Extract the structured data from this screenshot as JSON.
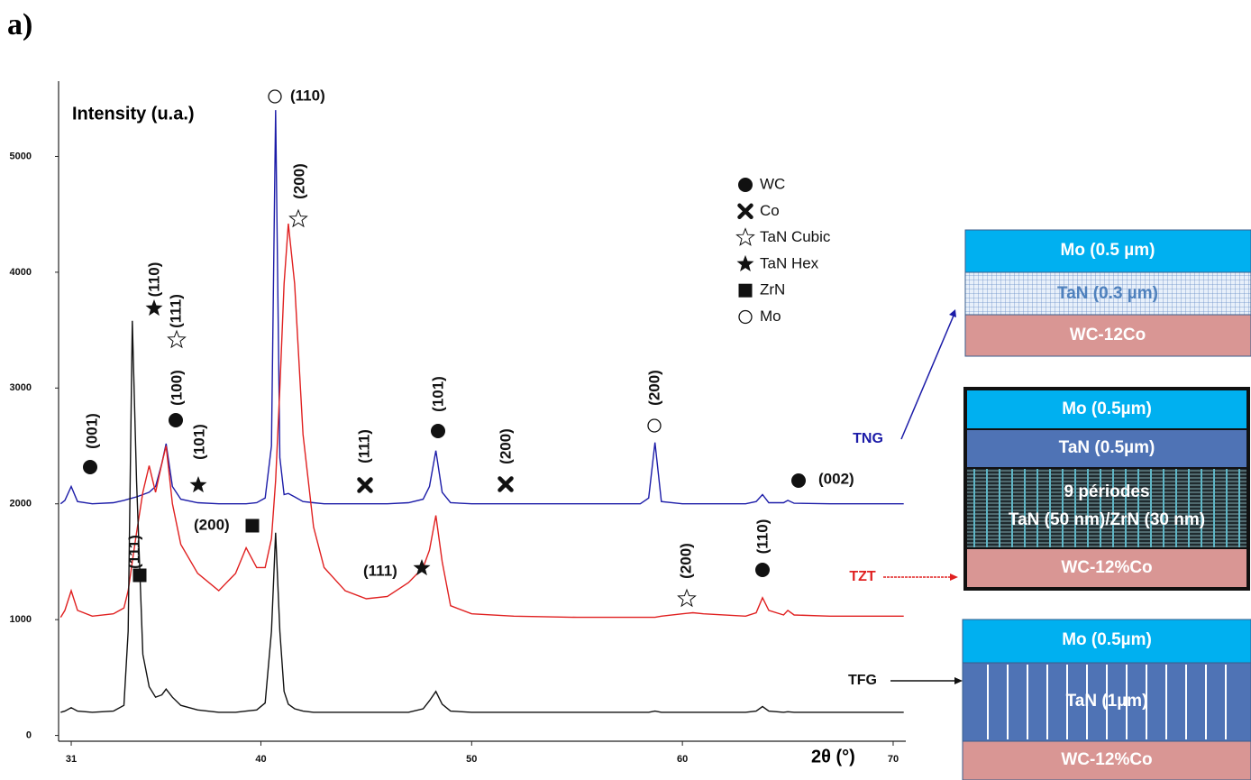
{
  "panel_label": "a)",
  "chart_data": {
    "type": "line",
    "y_label": "Intensity (u.a.)",
    "x_label": "2θ (°)",
    "xlim": [
      30.4,
      70.6
    ],
    "xticks": [
      31,
      40,
      50,
      60,
      70
    ],
    "ylim": [
      -50,
      5650
    ],
    "yticks": [
      0,
      1000,
      2000,
      3000,
      4000,
      5000
    ],
    "grid": false,
    "x": [
      30.5,
      30.7,
      31.0,
      31.3,
      32,
      33,
      33.5,
      33.7,
      33.9,
      34.1,
      34.4,
      34.7,
      35.0,
      35.3,
      35.5,
      35.8,
      36.2,
      37,
      38,
      38.8,
      39.3,
      39.8,
      40.2,
      40.5,
      40.7,
      40.9,
      41.1,
      41.3,
      41.6,
      42,
      42.5,
      43,
      44,
      45,
      46,
      47,
      47.7,
      48.0,
      48.3,
      48.6,
      49,
      50,
      52,
      55,
      58,
      58.4,
      58.7,
      59,
      60,
      60.5,
      61,
      63,
      63.5,
      63.8,
      64.1,
      64.8,
      65.0,
      65.3,
      67,
      70.5
    ],
    "series": [
      {
        "name": "TNG",
        "color": "#1c1ca8",
        "values": [
          2000,
          2030,
          2150,
          2020,
          2000,
          2010,
          2030,
          2040,
          2050,
          2060,
          2080,
          2100,
          2150,
          2350,
          2520,
          2150,
          2040,
          2010,
          2000,
          2000,
          2000,
          2010,
          2050,
          2500,
          5400,
          2400,
          2080,
          2090,
          2060,
          2020,
          2010,
          2000,
          2000,
          2000,
          2000,
          2010,
          2040,
          2150,
          2460,
          2100,
          2010,
          2000,
          2000,
          2000,
          2000,
          2050,
          2530,
          2020,
          2000,
          2000,
          2000,
          2000,
          2020,
          2080,
          2010,
          2010,
          2030,
          2005,
          2000,
          2000
        ]
      },
      {
        "name": "TZT",
        "color": "#e02020",
        "values": [
          1020,
          1080,
          1250,
          1080,
          1030,
          1050,
          1100,
          1250,
          1500,
          1750,
          2100,
          2330,
          2100,
          2350,
          2500,
          2000,
          1650,
          1400,
          1250,
          1400,
          1620,
          1450,
          1450,
          1700,
          2200,
          3000,
          3900,
          4420,
          3900,
          2600,
          1800,
          1450,
          1250,
          1180,
          1200,
          1320,
          1450,
          1600,
          1900,
          1500,
          1120,
          1050,
          1030,
          1020,
          1020,
          1020,
          1020,
          1030,
          1050,
          1060,
          1050,
          1030,
          1060,
          1190,
          1080,
          1040,
          1080,
          1040,
          1030,
          1030
        ]
      },
      {
        "name": "TFG",
        "color": "#111111",
        "values": [
          200,
          210,
          240,
          210,
          200,
          210,
          260,
          900,
          3580,
          2200,
          700,
          420,
          330,
          350,
          400,
          330,
          260,
          220,
          200,
          200,
          210,
          220,
          280,
          900,
          1750,
          900,
          380,
          270,
          230,
          210,
          200,
          200,
          200,
          200,
          200,
          200,
          230,
          300,
          380,
          270,
          210,
          200,
          200,
          200,
          200,
          200,
          210,
          200,
          200,
          200,
          200,
          200,
          210,
          250,
          210,
          200,
          205,
          200,
          200,
          200
        ]
      }
    ],
    "legend": [
      {
        "name": "WC",
        "marker": "circle"
      },
      {
        "name": "Co",
        "marker": "cross"
      },
      {
        "name": "TaN Cubic",
        "marker": "star-open"
      },
      {
        "name": "TaN Hex",
        "marker": "star"
      },
      {
        "name": "ZrN",
        "marker": "square"
      },
      {
        "name": "Mo",
        "marker": "circle-open"
      }
    ],
    "annotations": [
      {
        "label": "(001)",
        "marker": "circle"
      },
      {
        "label": "(110)",
        "marker": "star"
      },
      {
        "label": "(111)",
        "marker": "star-open"
      },
      {
        "label": "(100)",
        "marker": "circle"
      },
      {
        "label": "(101)",
        "marker": "star"
      },
      {
        "label": "(110)",
        "marker": "circle-open"
      },
      {
        "label": "(200)",
        "marker": "star-open"
      },
      {
        "label": "(111)",
        "marker": "cross"
      },
      {
        "label": "(101)",
        "marker": "circle"
      },
      {
        "label": "(200)",
        "marker": "cross"
      },
      {
        "label": "(200)",
        "marker": "circle-open"
      },
      {
        "label": "(002)",
        "marker": "circle"
      },
      {
        "label": "(111)",
        "marker": "square"
      },
      {
        "label": "(200)",
        "marker": "square"
      },
      {
        "label": "(111)",
        "marker": "star"
      },
      {
        "label": "(200)",
        "marker": "star-open"
      },
      {
        "label": "(110)",
        "marker": "circle"
      }
    ]
  },
  "diagrams": [
    {
      "layers": [
        "Mo (0.5 µm)",
        "TaN (0.3 µm)",
        "WC-12Co"
      ]
    },
    {
      "layers": [
        "Mo (0.5µm)",
        "TaN (0.5µm)",
        "9 périodes",
        "TaN (50 nm)/ZrN (30 nm)",
        "WC-12%Co"
      ]
    },
    {
      "layers": [
        "Mo (0.5µm)",
        "TaN (1µm)",
        "WC-12%Co"
      ]
    }
  ]
}
